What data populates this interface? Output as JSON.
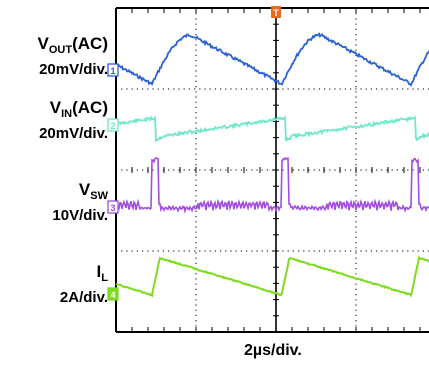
{
  "chart_data": {
    "type": "line",
    "title": "",
    "grid": true,
    "xlabel": "2µs/div.",
    "channels": [
      {
        "id": "1",
        "name_main": "V",
        "name_sub": "OUT",
        "name_suffix": "(AC)",
        "scale": "20mV/div.",
        "color": "#2b62d4"
      },
      {
        "id": "2",
        "name_main": "V",
        "name_sub": "IN",
        "name_suffix": "(AC)",
        "scale": "20mV/div.",
        "color": "#6ee8cc"
      },
      {
        "id": "3",
        "name_main": "V",
        "name_sub": "SW",
        "name_suffix": "",
        "scale": "10V/div.",
        "color": "#a24ee0"
      },
      {
        "id": "4",
        "name_main": "I",
        "name_sub": "L",
        "name_suffix": "",
        "scale": "2A/div.",
        "color": "#7ddc1f"
      }
    ],
    "trigger_marker": "T",
    "period_div": 1.62,
    "events_div": [
      0.45,
      2.07,
      3.69,
      5.31,
      6.93
    ]
  }
}
